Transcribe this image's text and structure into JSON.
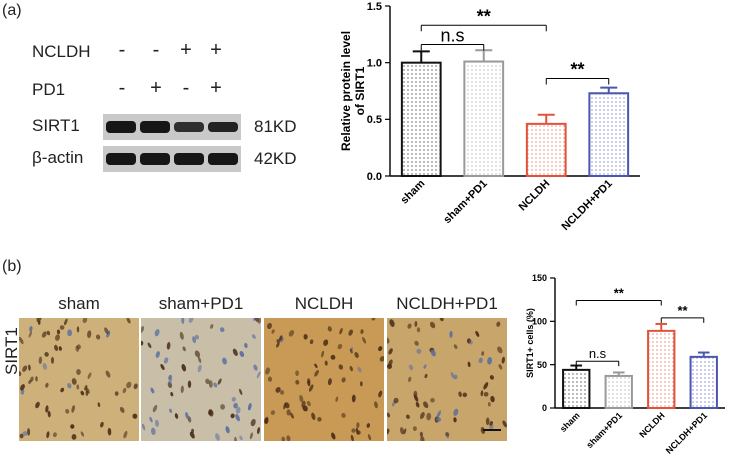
{
  "panel_a": {
    "label": "(a)",
    "rows": [
      {
        "label": "NCLDH",
        "signs": [
          "-",
          "-",
          "+",
          "+"
        ]
      },
      {
        "label": "PD1",
        "signs": [
          "-",
          "+",
          "-",
          "+"
        ]
      }
    ],
    "blots": [
      {
        "label": "SIRT1",
        "weight": "81KD",
        "intensity": [
          0.85,
          0.85,
          0.55,
          0.7
        ]
      },
      {
        "label": "β-actin",
        "weight": "42KD",
        "intensity": [
          0.85,
          0.85,
          0.85,
          0.85
        ]
      }
    ]
  },
  "panel_b": {
    "label": "(b)",
    "side_label": "SIRT1",
    "images": [
      {
        "title": "sham",
        "tone": "#cdb07a",
        "nuclei": 0.85
      },
      {
        "title": "sham+PD1",
        "tone": "#c9bfa8",
        "nuclei": 0.45
      },
      {
        "title": "NCLDH",
        "tone": "#c99a55",
        "nuclei": 0.95
      },
      {
        "title": "NCLDH+PD1",
        "tone": "#c8a56a",
        "nuclei": 0.75
      }
    ]
  },
  "chart_data": [
    {
      "type": "bar",
      "categories": [
        "sham",
        "sham+PD1",
        "NCLDH",
        "NCLDH+PD1"
      ],
      "values": [
        1.0,
        1.01,
        0.46,
        0.73
      ],
      "errors": [
        0.1,
        0.1,
        0.08,
        0.05
      ],
      "colors": [
        "#111111",
        "#999999",
        "#e0533a",
        "#4a56b0"
      ],
      "title": "",
      "xlabel": "",
      "ylabel": "Relative protein level of SIRT1",
      "ylim": [
        0,
        1.5
      ],
      "yticks": [
        "0.0",
        "0.5",
        "1.0",
        "1.5"
      ],
      "annotations": [
        {
          "from": "sham",
          "to": "NCLDH",
          "text": "**"
        },
        {
          "from": "sham",
          "to": "sham+PD1",
          "text": "n.s"
        },
        {
          "from": "NCLDH",
          "to": "NCLDH+PD1",
          "text": "**"
        }
      ]
    },
    {
      "type": "bar",
      "categories": [
        "sham",
        "sham+PD1",
        "NCLDH",
        "NCLDH+PD1"
      ],
      "values": [
        44,
        37,
        89,
        59
      ],
      "errors": [
        5,
        4,
        8,
        5
      ],
      "colors": [
        "#111111",
        "#999999",
        "#e0533a",
        "#4a56b0"
      ],
      "title": "",
      "xlabel": "",
      "ylabel": "SIRT1+ cells (%)",
      "ylim": [
        0,
        150
      ],
      "yticks": [
        "0",
        "50",
        "100",
        "150"
      ],
      "annotations": [
        {
          "from": "sham",
          "to": "NCLDH",
          "text": "**"
        },
        {
          "from": "sham",
          "to": "sham+PD1",
          "text": "n.s"
        },
        {
          "from": "NCLDH",
          "to": "NCLDH+PD1",
          "text": "**"
        }
      ]
    }
  ]
}
